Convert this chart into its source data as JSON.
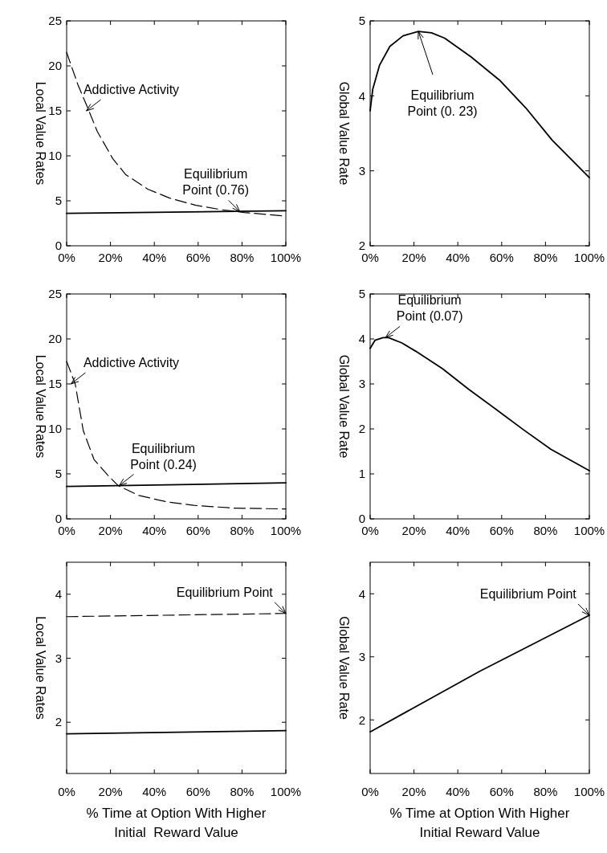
{
  "chart_data": [
    {
      "type": "line",
      "ylabel": "Local Value Rates",
      "xlim": [
        0,
        100
      ],
      "xticks": [
        {
          "value": 0,
          "label": "0%"
        },
        {
          "value": 20,
          "label": "20%"
        },
        {
          "value": 40,
          "label": "40%"
        },
        {
          "value": 60,
          "label": "60%"
        },
        {
          "value": 80,
          "label": "80%"
        },
        {
          "value": 100,
          "label": "100%"
        }
      ],
      "ylim": [
        0,
        25
      ],
      "yticks": [
        0,
        5,
        10,
        15,
        20,
        25
      ],
      "series": [
        {
          "color": "#000000",
          "line_style": "dashed",
          "x": [
            0,
            5,
            10,
            14,
            21,
            27,
            37,
            47,
            59,
            71,
            81,
            100
          ],
          "values": [
            21.5,
            18,
            15.1,
            12.7,
            9.7,
            7.9,
            6.3,
            5.3,
            4.5,
            4.0,
            3.7,
            3.3
          ]
        },
        {
          "color": "#000000",
          "line_style": "solid",
          "x": [
            0,
            100
          ],
          "values": [
            3.6,
            3.9
          ]
        }
      ],
      "annotations": [
        {
          "text": "Addictive Activity",
          "x": 9,
          "y": 15
        },
        {
          "text": "Equilibrium Point (0.76)",
          "x": 79,
          "y": 3.8
        }
      ]
    },
    {
      "type": "line",
      "ylabel": "Global Value Rate",
      "xlim": [
        0,
        100
      ],
      "xticks": [
        {
          "value": 0,
          "label": "0%"
        },
        {
          "value": 20,
          "label": "20%"
        },
        {
          "value": 40,
          "label": "40%"
        },
        {
          "value": 60,
          "label": "60%"
        },
        {
          "value": 80,
          "label": "80%"
        },
        {
          "value": 100,
          "label": "100%"
        }
      ],
      "ylim": [
        2,
        5
      ],
      "yticks": [
        2,
        3,
        4,
        5
      ],
      "series": [
        {
          "color": "#000000",
          "line_style": "solid",
          "x": [
            0,
            1.2,
            4.3,
            9,
            15,
            22,
            28,
            34,
            46,
            59,
            71,
            83,
            100
          ],
          "values": [
            3.8,
            4.09,
            4.41,
            4.66,
            4.8,
            4.86,
            4.84,
            4.77,
            4.52,
            4.21,
            3.84,
            3.41,
            2.91
          ]
        }
      ],
      "annotations": [
        {
          "text": "Equilibrium Point (0. 23)",
          "x": 22,
          "y": 4.86
        }
      ]
    },
    {
      "type": "line",
      "ylabel": "Local Value Rates",
      "xlim": [
        0,
        100
      ],
      "xticks": [
        {
          "value": 0,
          "label": "0%"
        },
        {
          "value": 20,
          "label": "20%"
        },
        {
          "value": 40,
          "label": "40%"
        },
        {
          "value": 60,
          "label": "60%"
        },
        {
          "value": 80,
          "label": "80%"
        },
        {
          "value": 100,
          "label": "100%"
        }
      ],
      "ylim": [
        0,
        25
      ],
      "yticks": [
        0,
        5,
        10,
        15,
        20,
        25
      ],
      "series": [
        {
          "color": "#000000",
          "line_style": "dashed",
          "x": [
            0,
            3.9,
            7.6,
            12.5,
            18.6,
            23.5,
            33,
            45.5,
            58,
            76,
            100
          ],
          "values": [
            17.5,
            15,
            9.8,
            6.6,
            4.9,
            3.7,
            2.6,
            1.9,
            1.5,
            1.2,
            1.1
          ]
        },
        {
          "color": "#000000",
          "line_style": "solid",
          "x": [
            0,
            100
          ],
          "values": [
            3.6,
            4.0
          ]
        }
      ],
      "annotations": [
        {
          "text": "Addictive Activity",
          "x": 2,
          "y": 15
        },
        {
          "text": "Equilibrium Point (0.24)",
          "x": 24,
          "y": 3.7
        }
      ]
    },
    {
      "type": "line",
      "ylabel": "Global Value Rate",
      "xlim": [
        0,
        100
      ],
      "xticks": [
        {
          "value": 0,
          "label": "0%"
        },
        {
          "value": 20,
          "label": "20%"
        },
        {
          "value": 40,
          "label": "40%"
        },
        {
          "value": 60,
          "label": "60%"
        },
        {
          "value": 80,
          "label": "80%"
        },
        {
          "value": 100,
          "label": "100%"
        }
      ],
      "ylim": [
        0,
        5
      ],
      "yticks": [
        0,
        1,
        2,
        3,
        4,
        5
      ],
      "series": [
        {
          "color": "#000000",
          "line_style": "solid",
          "x": [
            0,
            2.2,
            5.9,
            8.4,
            14.5,
            20.7,
            33,
            45,
            57.6,
            70,
            82.4,
            100
          ],
          "values": [
            3.79,
            3.97,
            4.03,
            4.03,
            3.91,
            3.73,
            3.34,
            2.88,
            2.43,
            1.98,
            1.55,
            1.07
          ]
        }
      ],
      "annotations": [
        {
          "text": "Equilibrium Point (0.07)",
          "x": 7,
          "y": 4.03
        }
      ]
    },
    {
      "type": "line",
      "ylabel": "Local Value Rates",
      "xlabel": "% Time at Option With Higher Initial  Reward Value",
      "xlim": [
        0,
        100
      ],
      "xticks": [
        {
          "value": 0,
          "label": "0%"
        },
        {
          "value": 20,
          "label": "20%"
        },
        {
          "value": 40,
          "label": "40%"
        },
        {
          "value": 60,
          "label": "60%"
        },
        {
          "value": 80,
          "label": "80%"
        },
        {
          "value": 100,
          "label": "100%"
        }
      ],
      "ylim": [
        1.2,
        4.5
      ],
      "yticks": [
        2,
        3,
        4
      ],
      "series": [
        {
          "color": "#000000",
          "line_style": "dashed",
          "x": [
            0,
            100
          ],
          "values": [
            3.65,
            3.7
          ]
        },
        {
          "color": "#000000",
          "line_style": "solid",
          "x": [
            0,
            100
          ],
          "values": [
            1.82,
            1.87
          ]
        }
      ],
      "annotations": [
        {
          "text": "Equilibrium Point",
          "x": 100,
          "y": 3.7
        }
      ]
    },
    {
      "type": "line",
      "ylabel": "Global Value Rate",
      "xlabel": "% Time at Option With Higher Initial Reward Value",
      "xlim": [
        0,
        100
      ],
      "xticks": [
        {
          "value": 0,
          "label": "0%"
        },
        {
          "value": 20,
          "label": "20%"
        },
        {
          "value": 40,
          "label": "40%"
        },
        {
          "value": 60,
          "label": "60%"
        },
        {
          "value": 80,
          "label": "80%"
        },
        {
          "value": 100,
          "label": "100%"
        }
      ],
      "ylim": [
        1.15,
        4.5
      ],
      "yticks": [
        2,
        3,
        4
      ],
      "series": [
        {
          "color": "#000000",
          "line_style": "solid",
          "x": [
            0,
            50,
            100
          ],
          "values": [
            1.81,
            2.77,
            3.66
          ]
        }
      ],
      "annotations": [
        {
          "text": "Equilibrium Point",
          "x": 100,
          "y": 3.66
        }
      ]
    }
  ]
}
